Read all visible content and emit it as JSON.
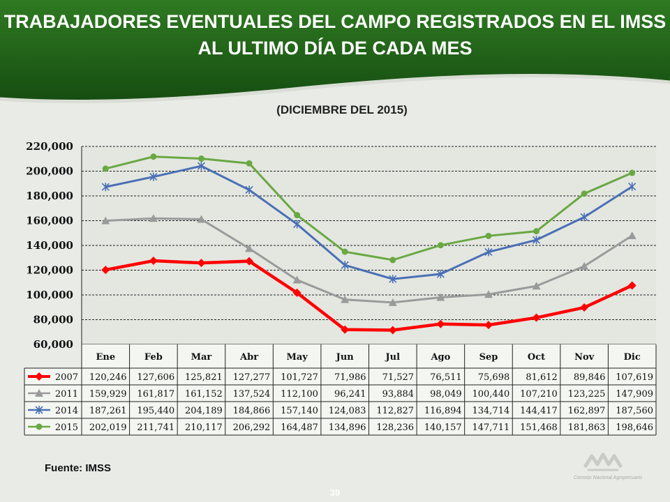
{
  "header": {
    "title_line1": "TRABAJADORES EVENTUALES DEL CAMPO REGISTRADOS EN EL IMSS",
    "title_line2": "AL ULTIMO DÍA DE CADA MES",
    "subtitle": "(DICIEMBRE DEL 2015)"
  },
  "footer": {
    "source": "Fuente: IMSS",
    "page_number": "39",
    "logo_text": "Consejo Nacional Agropecuario"
  },
  "colors": {
    "banner": "#1e5e17",
    "background": "#e8ebe6"
  },
  "chart_data": {
    "type": "line",
    "title": "",
    "xlabel": "",
    "ylabel": "",
    "categories": [
      "Ene",
      "Feb",
      "Mar",
      "Abr",
      "May",
      "Jun",
      "Jul",
      "Ago",
      "Sep",
      "Oct",
      "Nov",
      "Dic"
    ],
    "ylim": [
      60000,
      220000
    ],
    "yticks": [
      60000,
      80000,
      100000,
      120000,
      140000,
      160000,
      180000,
      200000,
      220000
    ],
    "ytick_labels": [
      "60,000",
      "80,000",
      "100,000",
      "120,000",
      "140,000",
      "160,000",
      "180,000",
      "200,000",
      "220,000"
    ],
    "grid": true,
    "legend": "data table below chart",
    "series": [
      {
        "name": "2007",
        "color": "#ff0000",
        "marker": "diamond",
        "values": [
          120246,
          127606,
          125821,
          127277,
          101727,
          71986,
          71527,
          76511,
          75698,
          81612,
          89846,
          107619
        ],
        "labels": [
          "120,246",
          "127,606",
          "125,821",
          "127,277",
          "101,727",
          "71,986",
          "71,527",
          "76,511",
          "75,698",
          "81,612",
          "89,846",
          "107,619"
        ]
      },
      {
        "name": "2011",
        "color": "#9a9a9a",
        "marker": "triangle",
        "values": [
          159929,
          161817,
          161152,
          137524,
          112100,
          96241,
          93884,
          98049,
          100440,
          107210,
          123225,
          147909
        ],
        "labels": [
          "159,929",
          "161,817",
          "161,152",
          "137,524",
          "112,100",
          "96,241",
          "93,884",
          "98,049",
          "100,440",
          "107,210",
          "123,225",
          "147,909"
        ]
      },
      {
        "name": "2014",
        "color": "#4a6fb5",
        "marker": "star",
        "values": [
          187261,
          195440,
          204189,
          184866,
          157140,
          124083,
          112827,
          116894,
          134714,
          144417,
          162897,
          187560
        ],
        "labels": [
          "187,261",
          "195,440",
          "204,189",
          "184,866",
          "157,140",
          "124,083",
          "112,827",
          "116,894",
          "134,714",
          "144,417",
          "162,897",
          "187,560"
        ]
      },
      {
        "name": "2015",
        "color": "#6aa843",
        "marker": "circle",
        "values": [
          202019,
          211741,
          210117,
          206292,
          164487,
          134896,
          128236,
          140157,
          147711,
          151468,
          181863,
          198646
        ],
        "labels": [
          "202,019",
          "211,741",
          "210,117",
          "206,292",
          "164,487",
          "134,896",
          "128,236",
          "140,157",
          "147,711",
          "151,468",
          "181,863",
          "198,646"
        ]
      }
    ]
  }
}
